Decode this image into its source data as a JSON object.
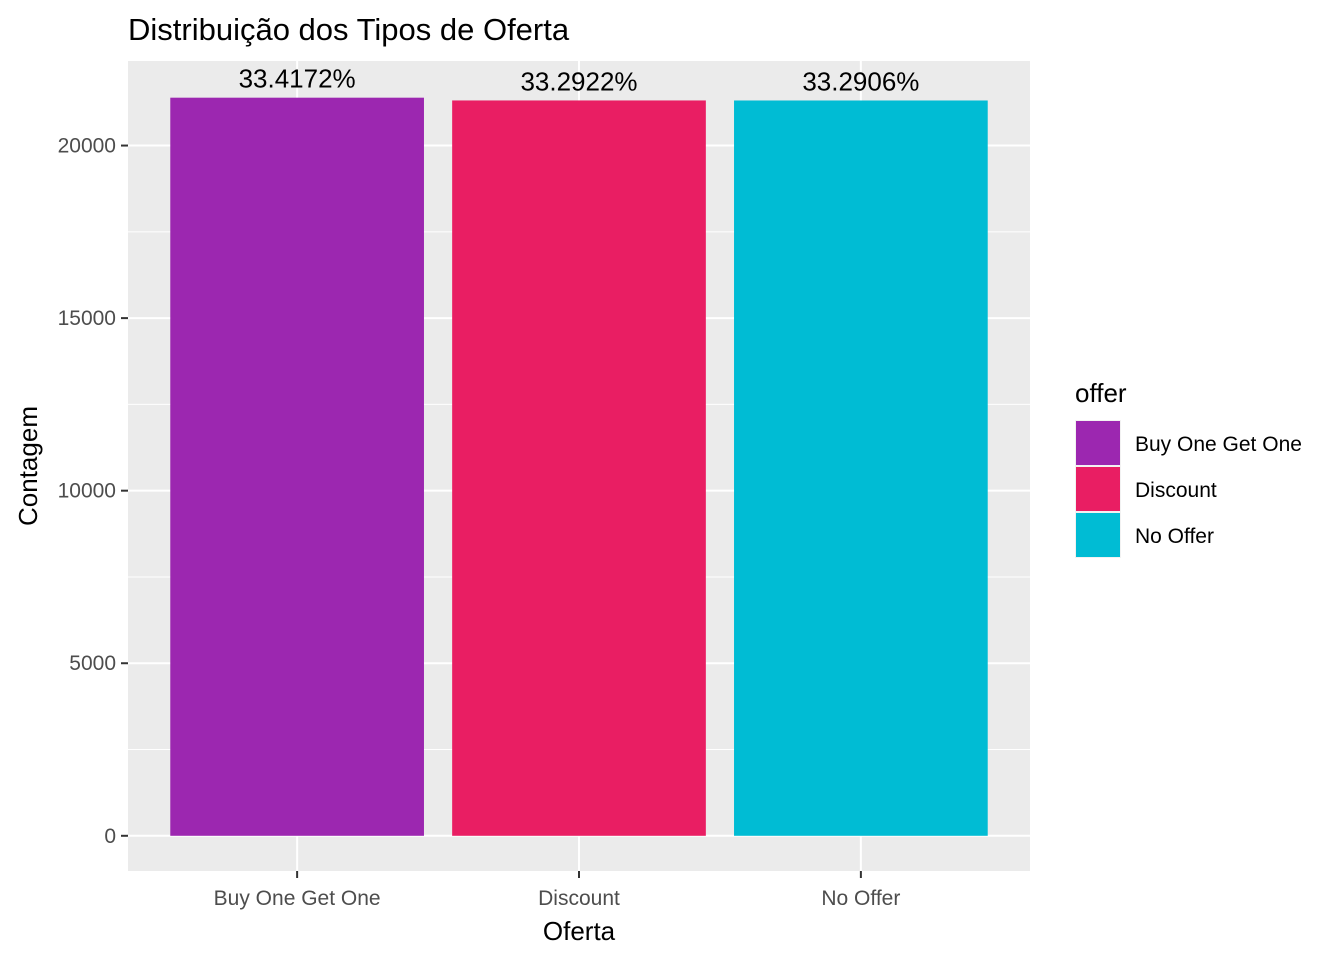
{
  "chart_data": {
    "type": "bar",
    "title": "Distribuição dos Tipos de Oferta",
    "xlabel": "Oferta",
    "ylabel": "Contagem",
    "categories": [
      "Buy One Get One",
      "Discount",
      "No Offer"
    ],
    "values": [
      21387,
      21307,
      21306
    ],
    "data_labels": [
      "33.4172%",
      "33.2922%",
      "33.2906%"
    ],
    "colors": [
      "#9C27B0",
      "#E91E63",
      "#00BCD4"
    ],
    "ylim": [
      -1020,
      22450
    ],
    "y_ticks": [
      0,
      5000,
      10000,
      15000,
      20000
    ],
    "y_tick_labels": [
      "0",
      "5000",
      "10000",
      "15000",
      "20000"
    ],
    "grid": true,
    "panel_background": "#EBEBEB",
    "legend": {
      "title": "offer",
      "position": "right",
      "items": [
        "Buy One Get One",
        "Discount",
        "No Offer"
      ]
    }
  }
}
